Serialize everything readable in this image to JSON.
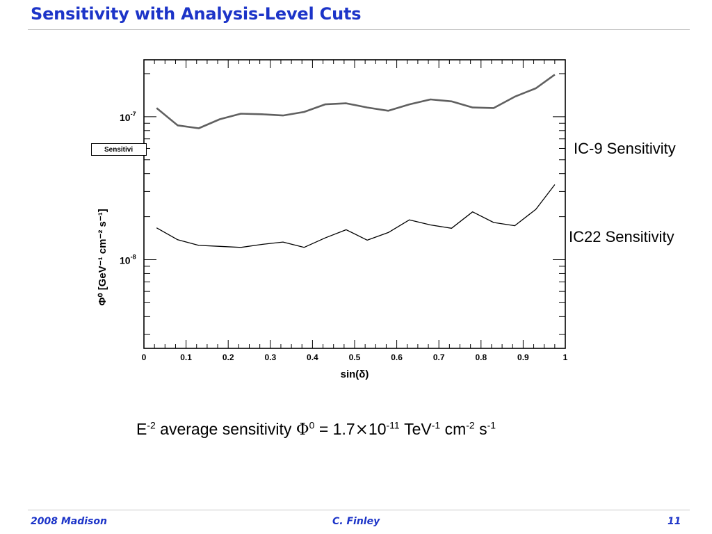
{
  "slide": {
    "title": "Sensitivity with Analysis-Level Cuts",
    "stray_label": "Sensitivi",
    "footer_left": "2008 Madison",
    "footer_center": "C. Finley",
    "footer_right": "11"
  },
  "formula": {
    "e": "E",
    "e_exp": "-2",
    "text1": " average sensitivity ",
    "phi": "Φ",
    "phi_exp": "0",
    "eq": " = 1.7",
    "times": "×",
    "ten": "10",
    "ten_exp": "-11",
    "tev": "  TeV",
    "tev_exp": "-1",
    "cm": " cm",
    "cm_exp": "-2",
    "s": " s",
    "s_exp": "-1"
  },
  "chart_data": {
    "type": "line",
    "xlabel": "sin(δ)",
    "ylabel": "Φ⁰ [GeV⁻¹ cm⁻² s⁻¹]",
    "xlim": [
      0,
      1
    ],
    "ylim": [
      2.4e-09,
      2.5e-07
    ],
    "yscale": "log",
    "x_ticks": [
      "0",
      "0.1",
      "0.2",
      "0.3",
      "0.4",
      "0.5",
      "0.6",
      "0.7",
      "0.8",
      "0.9",
      "1"
    ],
    "y_tick_labels": [
      {
        "value": 1e-07,
        "base": "10",
        "exp": "-7"
      },
      {
        "value": 1e-08,
        "base": "10",
        "exp": "-8"
      }
    ],
    "x": [
      0.03,
      0.08,
      0.13,
      0.18,
      0.23,
      0.28,
      0.33,
      0.38,
      0.43,
      0.48,
      0.53,
      0.58,
      0.63,
      0.68,
      0.73,
      0.78,
      0.83,
      0.88,
      0.93,
      0.975
    ],
    "series": [
      {
        "name": "IC-9 Sensitivity",
        "color": "#606060",
        "values": [
          1.15e-07,
          8.7e-08,
          8.3e-08,
          9.6e-08,
          1.05e-07,
          1.04e-07,
          1.02e-07,
          1.08e-07,
          1.22e-07,
          1.24e-07,
          1.16e-07,
          1.1e-07,
          1.22e-07,
          1.32e-07,
          1.28e-07,
          1.16e-07,
          1.15e-07,
          1.38e-07,
          1.58e-07,
          1.97e-07
        ]
      },
      {
        "name": "IC22 Sensitivity",
        "color": "#000000",
        "values": [
          1.67e-08,
          1.38e-08,
          1.26e-08,
          1.24e-08,
          1.22e-08,
          1.28e-08,
          1.33e-08,
          1.22e-08,
          1.42e-08,
          1.62e-08,
          1.37e-08,
          1.55e-08,
          1.9e-08,
          1.75e-08,
          1.66e-08,
          2.16e-08,
          1.82e-08,
          1.73e-08,
          2.25e-08,
          3.35e-08
        ]
      }
    ]
  }
}
